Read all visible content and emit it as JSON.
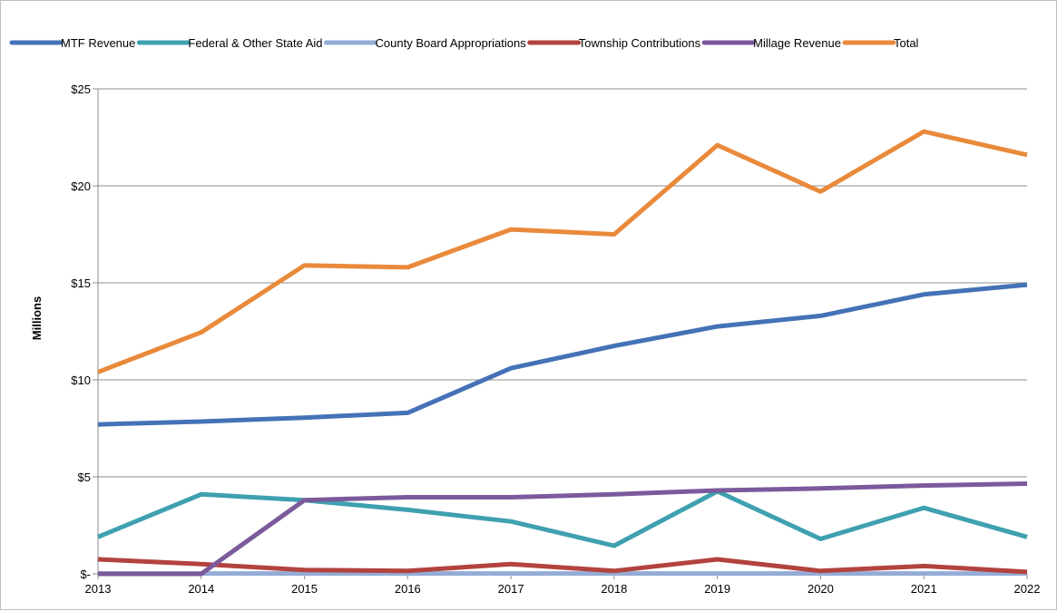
{
  "chart_data": {
    "type": "line",
    "title": "",
    "xlabel": "",
    "ylabel": "Millions",
    "x": [
      "2013",
      "2014",
      "2015",
      "2016",
      "2017",
      "2018",
      "2019",
      "2020",
      "2021",
      "2022"
    ],
    "ylim": [
      0,
      25
    ],
    "yticks": [
      0,
      5,
      10,
      15,
      20,
      25
    ],
    "ytick_labels": [
      "$-",
      "$5",
      "$10",
      "$15",
      "$20",
      "$25"
    ],
    "grid": true,
    "legend_position": "top",
    "series": [
      {
        "name": "MTF Revenue",
        "color": "#4572b7",
        "values": [
          7.7,
          7.85,
          8.05,
          8.3,
          10.6,
          11.75,
          12.75,
          13.3,
          14.4,
          14.9
        ]
      },
      {
        "name": "Federal & Other State Aid",
        "color": "#3fa0b0",
        "values": [
          1.9,
          4.1,
          3.8,
          3.3,
          2.7,
          1.45,
          4.25,
          1.8,
          3.4,
          1.9
        ]
      },
      {
        "name": "County Board Appropriations",
        "color": "#94acd6",
        "values": [
          0.02,
          0.02,
          0.02,
          0.02,
          0.02,
          0.02,
          0.02,
          0.02,
          0.02,
          0.02
        ]
      },
      {
        "name": "Township Contributions",
        "color": "#b3433e",
        "values": [
          0.75,
          0.5,
          0.2,
          0.15,
          0.5,
          0.15,
          0.75,
          0.15,
          0.4,
          0.1
        ]
      },
      {
        "name": "Millage Revenue",
        "color": "#7b5a9c",
        "values": [
          0,
          0,
          3.8,
          3.95,
          3.95,
          4.1,
          4.3,
          4.4,
          4.55,
          4.65
        ]
      },
      {
        "name": "Total",
        "color": "#e98a3b",
        "values": [
          10.4,
          12.45,
          15.9,
          15.8,
          17.75,
          17.5,
          22.1,
          19.7,
          22.8,
          21.6
        ]
      }
    ]
  }
}
